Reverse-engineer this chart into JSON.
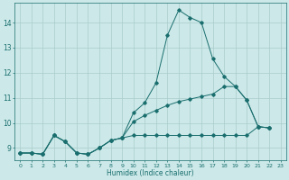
{
  "xlabel": "Humidex (Indice chaleur)",
  "background_color": "#cce8e8",
  "grid_color": "#aacccc",
  "line_color": "#1a6e6e",
  "xlim": [
    -0.5,
    23.5
  ],
  "ylim": [
    8.5,
    14.8
  ],
  "xticks": [
    0,
    1,
    2,
    3,
    4,
    5,
    6,
    7,
    8,
    9,
    10,
    11,
    12,
    13,
    14,
    15,
    16,
    17,
    18,
    19,
    20,
    21,
    22,
    23
  ],
  "yticks": [
    9,
    10,
    11,
    12,
    13,
    14
  ],
  "series1": [
    8.8,
    8.8,
    8.75,
    9.5,
    9.25,
    8.8,
    8.75,
    9.0,
    9.3,
    9.4,
    10.4,
    10.8,
    11.6,
    13.5,
    14.5,
    14.2,
    14.0,
    12.55,
    11.85,
    11.45,
    10.9,
    9.85,
    9.8
  ],
  "series2": [
    8.8,
    8.8,
    8.75,
    9.5,
    9.25,
    8.8,
    8.75,
    9.0,
    9.3,
    9.4,
    9.5,
    9.5,
    9.5,
    9.5,
    9.5,
    9.5,
    9.5,
    9.5,
    9.5,
    9.5,
    9.5,
    9.85,
    9.8
  ],
  "series3": [
    8.8,
    8.8,
    8.75,
    9.5,
    9.25,
    8.8,
    8.75,
    9.0,
    9.3,
    9.4,
    10.05,
    10.3,
    10.5,
    10.7,
    10.85,
    10.95,
    11.05,
    11.15,
    11.45,
    11.45,
    10.9,
    9.85,
    9.8
  ]
}
